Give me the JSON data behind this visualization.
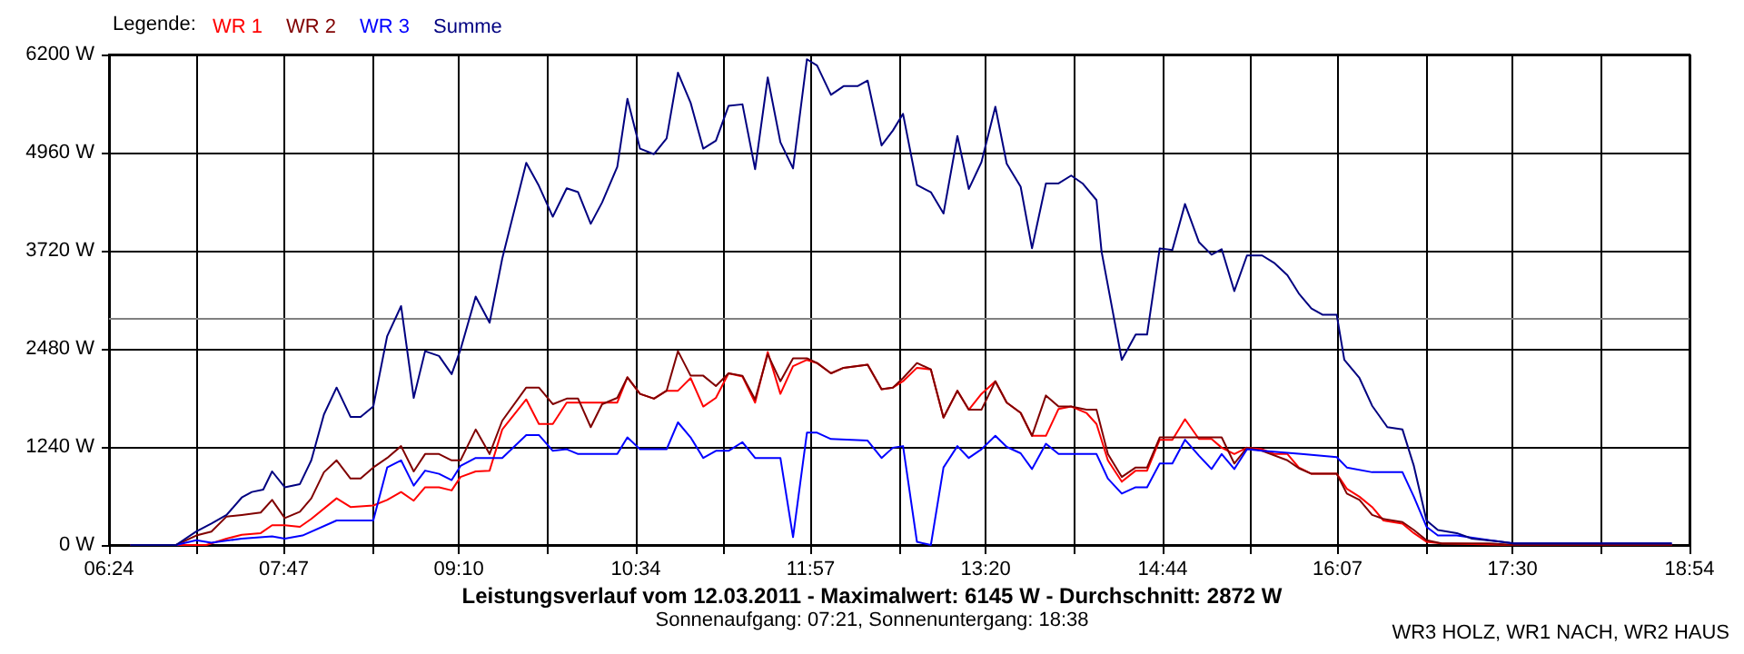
{
  "chart_data": {
    "type": "line",
    "title": "Leistungsverlauf vom 12.03.2011 - Maximalwert: 6145 W - Durchschnitt: 2872 W",
    "subtitle": "Sonnenaufgang: 07:21, Sonnenuntergang: 18:38",
    "legend_title": "Legende:",
    "legend": "top left",
    "grid": true,
    "marker": "none",
    "line_style": "solid",
    "annotations": [
      "WR3 HOLZ, WR1 NACH, WR2 HAUS"
    ],
    "xlim": [
      6.4,
      18.9
    ],
    "xticks": [
      {
        "value": 6.4,
        "label": "06:24"
      },
      {
        "value": 7.0944,
        "label": null
      },
      {
        "value": 7.7833,
        "label": "07:47"
      },
      {
        "value": 8.4833,
        "label": null
      },
      {
        "value": 9.1667,
        "label": "09:10"
      },
      {
        "value": 9.8722,
        "label": null
      },
      {
        "value": 10.5667,
        "label": "10:34"
      },
      {
        "value": 11.2611,
        "label": null
      },
      {
        "value": 11.95,
        "label": "11:57"
      },
      {
        "value": 12.65,
        "label": null
      },
      {
        "value": 13.3333,
        "label": "13:20"
      },
      {
        "value": 14.0389,
        "label": null
      },
      {
        "value": 14.7333,
        "label": "14:44"
      },
      {
        "value": 15.4278,
        "label": null
      },
      {
        "value": 16.1167,
        "label": "16:07"
      },
      {
        "value": 16.8167,
        "label": null
      },
      {
        "value": 17.5,
        "label": "17:30"
      },
      {
        "value": 18.2056,
        "label": null
      },
      {
        "value": 18.9,
        "label": "18:54"
      }
    ],
    "ylim": [
      0,
      6200
    ],
    "yticks": [
      {
        "value": 0,
        "label": "0 W"
      },
      {
        "value": 1240,
        "label": "1240 W"
      },
      {
        "value": 2480,
        "label": "2480 W"
      },
      {
        "value": 3720,
        "label": "3720 W"
      },
      {
        "value": 4960,
        "label": "4960 W"
      },
      {
        "value": 6200,
        "label": "6200 W"
      }
    ],
    "ref_lines": [
      {
        "axis": "y",
        "value": 2872,
        "color": "#808080"
      }
    ],
    "series": [
      {
        "name": "WR 1",
        "color": "#ff0000",
        "x": [
          6.57,
          7.17,
          7.33,
          7.45,
          7.6,
          7.69,
          7.79,
          7.91,
          8.0,
          8.2,
          8.31,
          8.49,
          8.6,
          8.71,
          8.81,
          8.9,
          9.01,
          9.11,
          9.18,
          9.3,
          9.41,
          9.51,
          9.7,
          9.8,
          9.91,
          10.02,
          10.11,
          10.3,
          10.42,
          10.5,
          10.6,
          10.71,
          10.81,
          10.9,
          11.0,
          11.1,
          11.2,
          11.3,
          11.41,
          11.51,
          11.61,
          11.71,
          11.81,
          11.92,
          12.0,
          12.11,
          12.21,
          12.4,
          12.51,
          12.6,
          12.68,
          12.79,
          12.9,
          13.0,
          13.11,
          13.2,
          13.3,
          13.41,
          13.5,
          13.61,
          13.7,
          13.81,
          13.91,
          14.01,
          14.13,
          14.21,
          14.3,
          14.41,
          14.52,
          14.61,
          14.71,
          14.81,
          14.91,
          15.02,
          15.12,
          15.2,
          15.3,
          15.4,
          15.52,
          15.62,
          15.72,
          15.81,
          15.91,
          16.11,
          16.19,
          16.29,
          16.39,
          16.48,
          16.63,
          16.72,
          16.82,
          16.94,
          17.51,
          18.76
        ],
        "values": [
          0,
          0,
          80,
          130,
          150,
          250,
          250,
          230,
          330,
          590,
          480,
          500,
          570,
          670,
          560,
          730,
          730,
          690,
          860,
          930,
          940,
          1460,
          1840,
          1530,
          1530,
          1800,
          1800,
          1800,
          1800,
          2120,
          1910,
          1850,
          1950,
          1950,
          2110,
          1750,
          1860,
          2170,
          2130,
          1800,
          2440,
          1910,
          2260,
          2340,
          2300,
          2170,
          2240,
          2280,
          1970,
          1990,
          2070,
          2240,
          2220,
          1610,
          1950,
          1710,
          1910,
          2070,
          1800,
          1670,
          1380,
          1380,
          1720,
          1750,
          1670,
          1530,
          1070,
          800,
          940,
          940,
          1330,
          1330,
          1590,
          1340,
          1340,
          1230,
          1150,
          1230,
          1210,
          1150,
          1150,
          980,
          900,
          900,
          710,
          610,
          480,
          310,
          270,
          150,
          40,
          20,
          0,
          0
        ]
      },
      {
        "name": "WR 2",
        "color": "#800000",
        "x": [
          6.57,
          6.93,
          7.09,
          7.21,
          7.33,
          7.45,
          7.6,
          7.69,
          7.79,
          7.91,
          8.0,
          8.1,
          8.2,
          8.31,
          8.39,
          8.49,
          8.6,
          8.71,
          8.81,
          8.9,
          9.01,
          9.11,
          9.18,
          9.3,
          9.41,
          9.51,
          9.7,
          9.8,
          9.91,
          10.02,
          10.11,
          10.21,
          10.3,
          10.42,
          10.5,
          10.6,
          10.71,
          10.81,
          10.9,
          11.0,
          11.1,
          11.2,
          11.3,
          11.41,
          11.51,
          11.61,
          11.71,
          11.81,
          11.92,
          12.0,
          12.11,
          12.21,
          12.4,
          12.51,
          12.6,
          12.68,
          12.79,
          12.9,
          13.0,
          13.11,
          13.2,
          13.3,
          13.41,
          13.5,
          13.61,
          13.7,
          13.81,
          13.91,
          14.01,
          14.13,
          14.21,
          14.3,
          14.41,
          14.52,
          14.61,
          14.71,
          14.81,
          14.91,
          15.02,
          15.2,
          15.3,
          15.4,
          15.52,
          15.72,
          15.81,
          15.91,
          16.11,
          16.19,
          16.29,
          16.39,
          16.48,
          16.63,
          16.72,
          16.82,
          16.94,
          17.32,
          17.51,
          18.76
        ],
        "values": [
          0,
          0,
          120,
          170,
          360,
          380,
          410,
          570,
          340,
          420,
          590,
          920,
          1070,
          840,
          840,
          980,
          1100,
          1250,
          930,
          1150,
          1150,
          1070,
          1070,
          1460,
          1150,
          1570,
          1990,
          1990,
          1780,
          1850,
          1850,
          1490,
          1780,
          1860,
          2120,
          1910,
          1850,
          1950,
          2450,
          2140,
          2140,
          2010,
          2170,
          2140,
          1840,
          2410,
          2070,
          2360,
          2360,
          2300,
          2170,
          2240,
          2280,
          1970,
          1990,
          2110,
          2300,
          2220,
          1610,
          1950,
          1710,
          1710,
          2070,
          1800,
          1670,
          1380,
          1890,
          1750,
          1750,
          1710,
          1710,
          1150,
          860,
          980,
          980,
          1360,
          1360,
          1360,
          1360,
          1360,
          1030,
          1230,
          1190,
          1070,
          970,
          900,
          900,
          650,
          570,
          380,
          330,
          290,
          190,
          60,
          20,
          20,
          0,
          0
        ]
      },
      {
        "name": "WR 3",
        "color": "#0000ff",
        "x": [
          6.57,
          6.93,
          7.09,
          7.21,
          7.45,
          7.69,
          7.79,
          7.93,
          8.2,
          8.49,
          8.6,
          8.71,
          8.81,
          8.9,
          9.01,
          9.11,
          9.18,
          9.3,
          9.51,
          9.7,
          9.8,
          9.91,
          10.02,
          10.11,
          10.42,
          10.5,
          10.6,
          10.81,
          10.9,
          11.0,
          11.1,
          11.2,
          11.3,
          11.41,
          11.51,
          11.71,
          11.81,
          11.92,
          12.0,
          12.11,
          12.4,
          12.51,
          12.6,
          12.68,
          12.79,
          12.9,
          13.0,
          13.11,
          13.2,
          13.3,
          13.41,
          13.5,
          13.61,
          13.7,
          13.81,
          13.91,
          14.21,
          14.3,
          14.41,
          14.52,
          14.61,
          14.71,
          14.81,
          14.91,
          15.02,
          15.12,
          15.2,
          15.3,
          15.4,
          15.52,
          15.83,
          16.11,
          16.19,
          16.39,
          16.63,
          16.72,
          16.82,
          16.91,
          17.06,
          17.32,
          17.51,
          18.76
        ],
        "values": [
          0,
          0,
          60,
          30,
          80,
          110,
          80,
          120,
          310,
          310,
          980,
          1070,
          750,
          940,
          900,
          820,
          1000,
          1100,
          1100,
          1390,
          1390,
          1190,
          1210,
          1150,
          1150,
          1360,
          1210,
          1210,
          1550,
          1360,
          1100,
          1190,
          1190,
          1300,
          1100,
          1100,
          100,
          1420,
          1420,
          1340,
          1320,
          1100,
          1230,
          1250,
          40,
          0,
          980,
          1250,
          1100,
          1210,
          1380,
          1240,
          1160,
          960,
          1280,
          1150,
          1150,
          840,
          650,
          730,
          730,
          1030,
          1030,
          1330,
          1130,
          960,
          1150,
          960,
          1210,
          1190,
          1150,
          1110,
          980,
          920,
          920,
          610,
          230,
          120,
          120,
          60,
          20,
          20
        ]
      },
      {
        "name": "Summe",
        "color": "#000080",
        "x": [
          6.57,
          6.93,
          7.09,
          7.21,
          7.33,
          7.45,
          7.53,
          7.62,
          7.69,
          7.79,
          7.91,
          8.0,
          8.1,
          8.2,
          8.31,
          8.39,
          8.49,
          8.6,
          8.71,
          8.81,
          8.9,
          9.01,
          9.11,
          9.18,
          9.3,
          9.41,
          9.51,
          9.7,
          9.8,
          9.91,
          10.02,
          10.11,
          10.21,
          10.3,
          10.42,
          10.5,
          10.6,
          10.71,
          10.81,
          10.9,
          11.0,
          11.1,
          11.2,
          11.3,
          11.41,
          11.51,
          11.61,
          11.71,
          11.81,
          11.92,
          12.0,
          12.11,
          12.21,
          12.32,
          12.4,
          12.51,
          12.6,
          12.68,
          12.79,
          12.9,
          13.0,
          13.11,
          13.2,
          13.3,
          13.41,
          13.5,
          13.61,
          13.7,
          13.81,
          13.91,
          14.01,
          14.1,
          14.21,
          14.25,
          14.41,
          14.52,
          14.61,
          14.71,
          14.81,
          14.91,
          15.02,
          15.12,
          15.2,
          15.3,
          15.4,
          15.52,
          15.62,
          15.72,
          15.81,
          15.91,
          16.0,
          16.11,
          16.17,
          16.29,
          16.39,
          16.51,
          16.63,
          16.72,
          16.82,
          16.91,
          17.06,
          17.18,
          17.37,
          17.51,
          18.76
        ],
        "values": [
          0,
          0,
          170,
          270,
          380,
          600,
          670,
          700,
          930,
          730,
          770,
          1070,
          1650,
          1990,
          1620,
          1620,
          1750,
          2640,
          3020,
          1860,
          2450,
          2390,
          2160,
          2470,
          3140,
          2810,
          3620,
          4830,
          4540,
          4150,
          4510,
          4460,
          4060,
          4330,
          4780,
          5640,
          5010,
          4940,
          5140,
          5970,
          5590,
          5010,
          5110,
          5550,
          5570,
          4750,
          5910,
          5090,
          4760,
          6140,
          6060,
          5690,
          5800,
          5800,
          5870,
          5050,
          5240,
          5450,
          4550,
          4460,
          4190,
          5170,
          4500,
          4840,
          5540,
          4820,
          4530,
          3750,
          4570,
          4570,
          4670,
          4570,
          4360,
          3710,
          2340,
          2660,
          2660,
          3750,
          3730,
          4310,
          3830,
          3670,
          3740,
          3210,
          3660,
          3660,
          3560,
          3410,
          3180,
          2990,
          2910,
          2910,
          2340,
          2110,
          1760,
          1490,
          1460,
          1000,
          310,
          190,
          150,
          80,
          50,
          20,
          20
        ]
      }
    ]
  }
}
